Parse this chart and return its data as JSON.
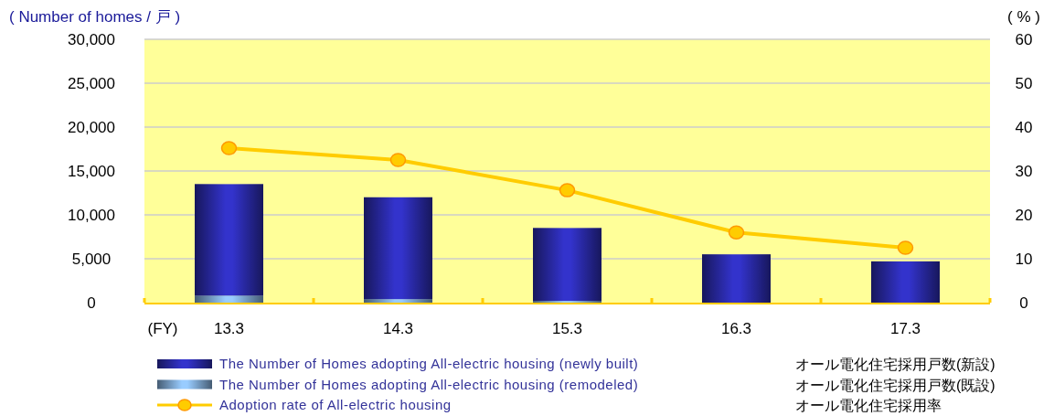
{
  "chart_data": {
    "type": "bar",
    "stacked": true,
    "ylabel": "( Number of homes / 戸 )",
    "y2label": "( % )",
    "xlabel": "(FY)",
    "categories": [
      "13.3",
      "14.3",
      "15.3",
      "16.3",
      "17.3"
    ],
    "series": [
      {
        "name": "The Number of Homes adopting All-electric housing (remodeled)",
        "color": "#99ccff",
        "values": [
          800,
          400,
          200,
          0,
          0
        ]
      },
      {
        "name": "The Number of Homes adopting All-electric housing (newly built)",
        "color": "#3333cc",
        "values": [
          12700,
          11600,
          8300,
          5500,
          4700
        ]
      },
      {
        "name": "Adoption rate of All-electric housing",
        "type": "line",
        "axis": "y2",
        "color": "#ffcc00",
        "marker": "circle",
        "values": [
          35.2,
          32.5,
          25.6,
          16.0,
          12.5
        ]
      }
    ],
    "annotations": [
      "オール電化住宅採用戸数(既設)",
      "オール電化住宅採用戸数(新設)",
      "オール電化住宅採用率"
    ],
    "ylim": [
      0,
      30000
    ],
    "yticks": [
      {
        "value": 0,
        "label": "0"
      },
      {
        "value": 5000,
        "label": "5,000"
      },
      {
        "value": 10000,
        "label": "10,000"
      },
      {
        "value": 15000,
        "label": "15,000"
      },
      {
        "value": 20000,
        "label": "20,000"
      },
      {
        "value": 25000,
        "label": "25,000"
      },
      {
        "value": 30000,
        "label": "30,000"
      }
    ],
    "y2lim": [
      0,
      60
    ],
    "y2ticks": [
      0,
      10,
      20,
      30,
      40,
      50,
      60
    ],
    "grid": "y",
    "legend": "bottom"
  }
}
